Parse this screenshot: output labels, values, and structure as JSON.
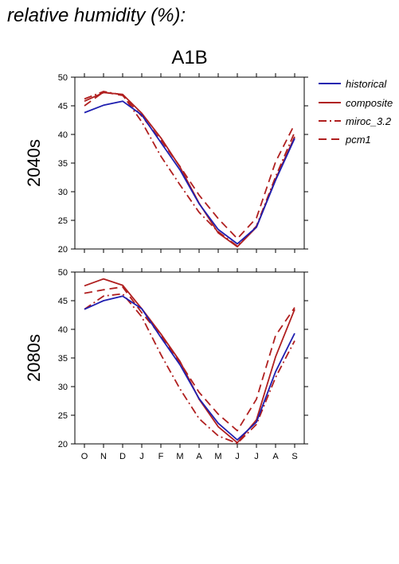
{
  "title": "relative humidity (%):",
  "scenario": "A1B",
  "colors": {
    "historical": "#1f1fb0",
    "model": "#b01f1f",
    "axis": "#000000"
  },
  "legend": [
    {
      "name": "historical",
      "style": "solid",
      "color": "#1f1fb0"
    },
    {
      "name": "composite",
      "style": "solid",
      "color": "#b01f1f"
    },
    {
      "name": "miroc_3.2",
      "style": "dashdot",
      "color": "#b01f1f"
    },
    {
      "name": "pcm1",
      "style": "dashed",
      "color": "#b01f1f"
    }
  ],
  "chart_data": [
    {
      "type": "line",
      "row_label": "2040s",
      "categories": [
        "O",
        "N",
        "D",
        "J",
        "F",
        "M",
        "A",
        "M",
        "J",
        "J",
        "A",
        "S"
      ],
      "ylim": [
        20,
        50
      ],
      "yticks": [
        20,
        25,
        30,
        35,
        40,
        45,
        50
      ],
      "show_x_tick_labels": false,
      "series": [
        {
          "name": "historical",
          "style": "solid",
          "color": "#1f1fb0",
          "values": [
            43.8,
            45.1,
            45.8,
            43.4,
            38.6,
            33.8,
            27.9,
            23.4,
            20.9,
            23.8,
            32.0,
            39.3
          ]
        },
        {
          "name": "composite",
          "style": "solid",
          "color": "#b01f1f",
          "values": [
            45.8,
            47.3,
            47.0,
            43.7,
            39.4,
            34.3,
            28.0,
            22.8,
            20.4,
            23.8,
            32.2,
            39.6
          ]
        },
        {
          "name": "miroc_3.2",
          "style": "dashdot",
          "color": "#b01f1f",
          "values": [
            46.2,
            47.5,
            46.9,
            42.2,
            36.2,
            31.2,
            26.4,
            23.0,
            20.5,
            24.0,
            32.6,
            40.4
          ]
        },
        {
          "name": "pcm1",
          "style": "dashed",
          "color": "#b01f1f",
          "values": [
            45.0,
            47.4,
            46.8,
            43.2,
            39.0,
            34.4,
            29.4,
            25.3,
            21.8,
            25.4,
            35.2,
            41.8
          ]
        }
      ]
    },
    {
      "type": "line",
      "row_label": "2080s",
      "categories": [
        "O",
        "N",
        "D",
        "J",
        "F",
        "M",
        "A",
        "M",
        "J",
        "J",
        "A",
        "S"
      ],
      "ylim": [
        20,
        50
      ],
      "yticks": [
        20,
        25,
        30,
        35,
        40,
        45,
        50
      ],
      "show_x_tick_labels": true,
      "series": [
        {
          "name": "historical",
          "style": "solid",
          "color": "#1f1fb0",
          "values": [
            43.5,
            45.0,
            45.8,
            43.6,
            38.6,
            33.8,
            27.9,
            23.6,
            20.7,
            23.8,
            32.6,
            39.3
          ]
        },
        {
          "name": "composite",
          "style": "solid",
          "color": "#b01f1f",
          "values": [
            47.6,
            48.8,
            47.7,
            43.6,
            39.2,
            34.4,
            27.8,
            23.0,
            20.2,
            24.2,
            35.2,
            43.5
          ]
        },
        {
          "name": "miroc_3.2",
          "style": "dashdot",
          "color": "#b01f1f",
          "values": [
            43.5,
            45.8,
            46.2,
            42.2,
            35.6,
            29.6,
            24.4,
            21.4,
            20.1,
            23.4,
            31.6,
            38.0
          ]
        },
        {
          "name": "pcm1",
          "style": "dashed",
          "color": "#b01f1f",
          "values": [
            46.3,
            46.9,
            47.4,
            42.9,
            38.9,
            34.2,
            29.0,
            25.2,
            22.3,
            27.8,
            38.9,
            43.8
          ]
        }
      ]
    }
  ]
}
